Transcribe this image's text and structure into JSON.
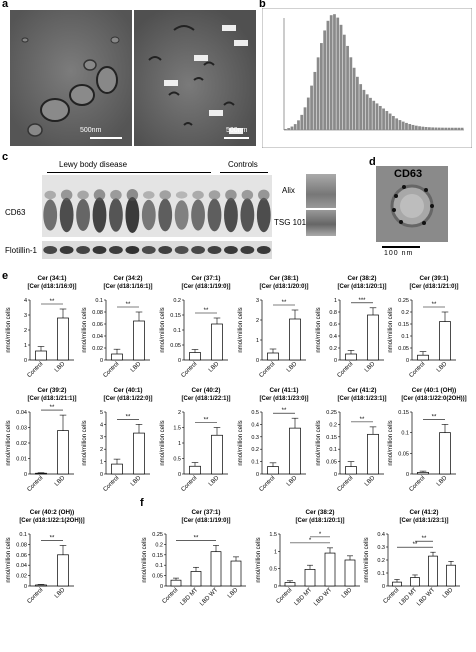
{
  "panels": {
    "a": "a",
    "b": "b",
    "c": "c",
    "d": "d",
    "e": "e",
    "f": "f"
  },
  "panel_a": {
    "scale_left": "500nm",
    "scale_right": "500nm"
  },
  "panel_c": {
    "group_lbd": "Lewy body disease",
    "group_controls": "Controls",
    "row_cd63": "CD63",
    "row_flotillin": "Flotillin-1",
    "alix": "Alix",
    "tsg101": "TSG 101"
  },
  "panel_d": {
    "label": "CD63",
    "scale": "100 nm"
  },
  "ylabel": "nmol/million cells",
  "chart_data": [
    {
      "type": "bar",
      "title": "Cer (34:1)",
      "subtitle": "[Cer (d18:1/16:0)]",
      "categories": [
        "Control",
        "LBD"
      ],
      "values": [
        0.6,
        2.8
      ],
      "errors": [
        0.3,
        0.6
      ],
      "ylim": [
        0,
        4
      ],
      "ticks": [
        0,
        1,
        2,
        3,
        4
      ],
      "sig": [
        [
          "Control",
          "LBD",
          "**"
        ]
      ]
    },
    {
      "type": "bar",
      "title": "Cer (34:2)",
      "subtitle": "[Cer (d18:1/16:1)]",
      "categories": [
        "Control",
        "LBD"
      ],
      "values": [
        0.01,
        0.065
      ],
      "errors": [
        0.008,
        0.015
      ],
      "ylim": [
        0,
        0.1
      ],
      "ticks": [
        0,
        0.02,
        0.04,
        0.06,
        0.08,
        0.1
      ],
      "sig": [
        [
          "Control",
          "LBD",
          "**"
        ]
      ]
    },
    {
      "type": "bar",
      "title": "Cer (37:1)",
      "subtitle": "[Cer (d18:1/19:0)]",
      "categories": [
        "Control",
        "LBD"
      ],
      "values": [
        0.025,
        0.12
      ],
      "errors": [
        0.01,
        0.02
      ],
      "ylim": [
        0,
        0.2
      ],
      "ticks": [
        0,
        0.05,
        0.1,
        0.15,
        0.2
      ],
      "sig": [
        [
          "Control",
          "LBD",
          "**"
        ]
      ]
    },
    {
      "type": "bar",
      "title": "Cer (38:1)",
      "subtitle": "[Cer (d18:1/20:0)]",
      "categories": [
        "Control",
        "LBD"
      ],
      "values": [
        0.35,
        2.05
      ],
      "errors": [
        0.2,
        0.45
      ],
      "ylim": [
        0,
        3
      ],
      "ticks": [
        0,
        1,
        2,
        3
      ],
      "sig": [
        [
          "Control",
          "LBD",
          "**"
        ]
      ]
    },
    {
      "type": "bar",
      "title": "Cer (38:2)",
      "subtitle": "[Cer (d18:1/20:1)]",
      "categories": [
        "Control",
        "LBD"
      ],
      "values": [
        0.1,
        0.75
      ],
      "errors": [
        0.06,
        0.12
      ],
      "ylim": [
        0,
        1
      ],
      "ticks": [
        0,
        0.2,
        0.4,
        0.6,
        0.8,
        1
      ],
      "sig": [
        [
          "Control",
          "LBD",
          "***"
        ]
      ]
    },
    {
      "type": "bar",
      "title": "Cer (39:1)",
      "subtitle": "[Cer (d18:1/21:0)]",
      "categories": [
        "Control",
        "LBD"
      ],
      "values": [
        0.02,
        0.16
      ],
      "errors": [
        0.015,
        0.04
      ],
      "ylim": [
        0,
        0.25
      ],
      "ticks": [
        0,
        0.05,
        0.1,
        0.15,
        0.2,
        0.25
      ],
      "sig": [
        [
          "Control",
          "LBD",
          "**"
        ]
      ]
    },
    {
      "type": "bar",
      "title": "Cer (39:2)",
      "subtitle": "[Cer (d18:1/21:1)]",
      "categories": [
        "Control",
        "LBD"
      ],
      "values": [
        0.0005,
        0.028
      ],
      "errors": [
        0.0003,
        0.01
      ],
      "ylim": [
        0,
        0.04
      ],
      "ticks": [
        0,
        0.01,
        0.02,
        0.03,
        0.04
      ],
      "sig": [
        [
          "Control",
          "LBD",
          "**"
        ]
      ]
    },
    {
      "type": "bar",
      "title": "Cer (40:1)",
      "subtitle": "[Cer (d18:1/22:0)]",
      "categories": [
        "Control",
        "LBD"
      ],
      "values": [
        0.8,
        3.3
      ],
      "errors": [
        0.4,
        0.7
      ],
      "ylim": [
        0,
        5
      ],
      "ticks": [
        0,
        1,
        2,
        3,
        4,
        5
      ],
      "sig": [
        [
          "Control",
          "LBD",
          "**"
        ]
      ]
    },
    {
      "type": "bar",
      "title": "Cer (40:2)",
      "subtitle": "[Cer (d18:1/22:1)]",
      "categories": [
        "Control",
        "LBD"
      ],
      "values": [
        0.25,
        1.25
      ],
      "errors": [
        0.12,
        0.25
      ],
      "ylim": [
        0,
        2
      ],
      "ticks": [
        0,
        0.5,
        1,
        1.5,
        2
      ],
      "sig": [
        [
          "Control",
          "LBD",
          "**"
        ]
      ]
    },
    {
      "type": "bar",
      "title": "Cer (41:1)",
      "subtitle": "[Cer (d18:1/23:0)]",
      "categories": [
        "Control",
        "LBD"
      ],
      "values": [
        0.06,
        0.37
      ],
      "errors": [
        0.03,
        0.08
      ],
      "ylim": [
        0,
        0.5
      ],
      "ticks": [
        0,
        0.1,
        0.2,
        0.3,
        0.4,
        0.5
      ],
      "sig": [
        [
          "Control",
          "LBD",
          "**"
        ]
      ]
    },
    {
      "type": "bar",
      "title": "Cer (41:2)",
      "subtitle": "[Cer (d18:1/23:1)]",
      "categories": [
        "Control",
        "LBD"
      ],
      "values": [
        0.03,
        0.16
      ],
      "errors": [
        0.02,
        0.03
      ],
      "ylim": [
        0,
        0.25
      ],
      "ticks": [
        0,
        0.05,
        0.1,
        0.15,
        0.2,
        0.25
      ],
      "sig": [
        [
          "Control",
          "LBD",
          "**"
        ]
      ]
    },
    {
      "type": "bar",
      "title": "Cer (40:1 (OH))",
      "subtitle": "[Cer (d18:1/22:0(2OH))]",
      "categories": [
        "Control",
        "LBD"
      ],
      "values": [
        0.004,
        0.1
      ],
      "errors": [
        0.003,
        0.02
      ],
      "ylim": [
        0,
        0.15
      ],
      "ticks": [
        0,
        0.05,
        0.1,
        0.15
      ],
      "sig": [
        [
          "Control",
          "LBD",
          "**"
        ]
      ]
    },
    {
      "type": "bar",
      "title": "Cer (40:2 (OH))",
      "subtitle": "[Cer (d18:1/22:1(2OH))]",
      "categories": [
        "Control",
        "LBD"
      ],
      "values": [
        0.002,
        0.06
      ],
      "errors": [
        0.001,
        0.018
      ],
      "ylim": [
        0,
        0.1
      ],
      "ticks": [
        0,
        0.02,
        0.04,
        0.06,
        0.08,
        0.1
      ],
      "sig": [
        [
          "Control",
          "LBD",
          "**"
        ]
      ]
    },
    {
      "type": "bar",
      "title": "Cer (37:1)",
      "subtitle": "[Cer (d18:1/19:0)]",
      "categories": [
        "Control",
        "LBD MT",
        "LBD WT",
        "LBD"
      ],
      "values": [
        0.028,
        0.07,
        0.165,
        0.12
      ],
      "errors": [
        0.01,
        0.02,
        0.03,
        0.02
      ],
      "ylim": [
        0,
        0.25
      ],
      "ticks": [
        0,
        0.05,
        0.1,
        0.15,
        0.2,
        0.25
      ],
      "sig": [
        [
          "Control",
          "LBD WT",
          "**"
        ]
      ]
    },
    {
      "type": "bar",
      "title": "Cer (38:2)",
      "subtitle": "[Cer (d18:1/20:1)]",
      "categories": [
        "Control",
        "LBD MT",
        "LBD WT",
        "LBD"
      ],
      "values": [
        0.1,
        0.48,
        0.95,
        0.75
      ],
      "errors": [
        0.05,
        0.12,
        0.15,
        0.12
      ],
      "ylim": [
        0,
        1.5
      ],
      "ticks": [
        0,
        0.5,
        1,
        1.5
      ],
      "sig": [
        [
          "Control",
          "LBD WT",
          "*"
        ],
        [
          "LBD MT",
          "LBD WT",
          "*"
        ]
      ]
    },
    {
      "type": "bar",
      "title": "Cer (41:2)",
      "subtitle": "[Cer (d18:1/23:1)]",
      "categories": [
        "Control",
        "LBD MT",
        "LBD WT",
        "LBD"
      ],
      "values": [
        0.03,
        0.065,
        0.23,
        0.16
      ],
      "errors": [
        0.02,
        0.02,
        0.03,
        0.03
      ],
      "ylim": [
        0,
        0.4
      ],
      "ticks": [
        0,
        0.1,
        0.2,
        0.3,
        0.4
      ],
      "sig": [
        [
          "Control",
          "LBD WT",
          "**"
        ],
        [
          "LBD MT",
          "LBD WT",
          "**"
        ]
      ]
    }
  ]
}
